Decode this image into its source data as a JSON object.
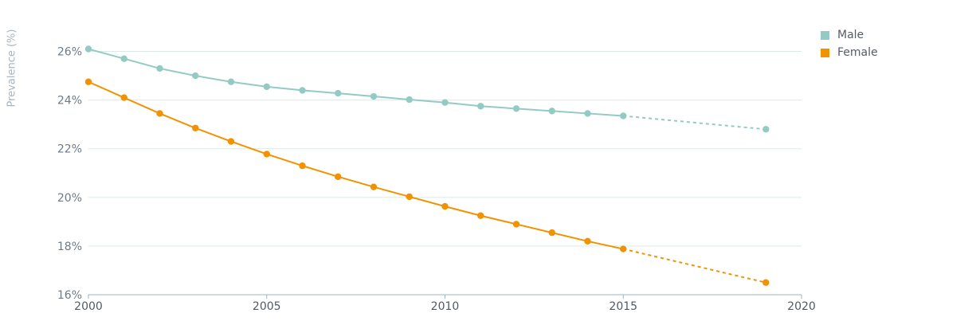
{
  "chart_data": {
    "type": "line",
    "title": "",
    "xlabel": "",
    "ylabel": "Prevalence (%)",
    "xlim": [
      2000,
      2020
    ],
    "ylim": [
      16,
      27
    ],
    "y_ticks": [
      16,
      18,
      20,
      22,
      24,
      26
    ],
    "y_tick_labels": [
      "16%",
      "18%",
      "20%",
      "22%",
      "24%",
      "26%"
    ],
    "x_ticks": [
      2000,
      2005,
      2010,
      2015,
      2020
    ],
    "x_tick_labels": [
      "2000",
      "2005",
      "2010",
      "2015",
      "2020"
    ],
    "grid": "horizontal",
    "legend_position": "top-right",
    "series": [
      {
        "name": "Male",
        "color": "#93cbc4",
        "x": [
          2000,
          2001,
          2002,
          2003,
          2004,
          2005,
          2006,
          2007,
          2008,
          2009,
          2010,
          2011,
          2012,
          2013,
          2014,
          2015,
          2019
        ],
        "values": [
          26.1,
          25.7,
          25.3,
          25.0,
          24.75,
          24.55,
          24.4,
          24.28,
          24.15,
          24.02,
          23.9,
          23.75,
          23.65,
          23.55,
          23.45,
          23.35,
          22.8
        ],
        "projected_from_index": 15
      },
      {
        "name": "Female",
        "color": "#f39200",
        "x": [
          2000,
          2001,
          2002,
          2003,
          2004,
          2005,
          2006,
          2007,
          2008,
          2009,
          2010,
          2011,
          2012,
          2013,
          2014,
          2015,
          2019
        ],
        "values": [
          24.75,
          24.1,
          23.45,
          22.85,
          22.3,
          21.78,
          21.3,
          20.85,
          20.43,
          20.03,
          19.63,
          19.25,
          18.9,
          18.55,
          18.2,
          17.88,
          16.5
        ],
        "projected_from_index": 15
      }
    ]
  }
}
